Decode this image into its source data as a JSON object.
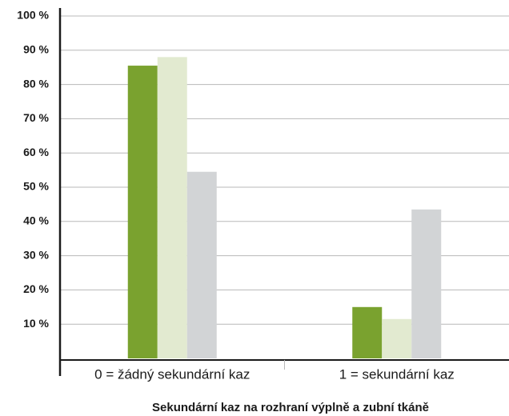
{
  "chart_data": {
    "type": "bar",
    "categories": [
      "0 = žádný sekundární kaz",
      "1 = sekundární kaz"
    ],
    "series": [
      {
        "color": "#7aa22f",
        "values": [
          85.5,
          15
        ]
      },
      {
        "color": "#e2ead0",
        "values": [
          88,
          11.5
        ]
      },
      {
        "color": "#d2d4d6",
        "values": [
          54.5,
          43.5
        ]
      }
    ],
    "x_label": "Sekundární kaz na rozhraní výplně a zubní tkáně",
    "ylim": [
      0,
      100
    ],
    "yticks": [
      {
        "value": 10,
        "label": "10 %"
      },
      {
        "value": 20,
        "label": "20 %"
      },
      {
        "value": 30,
        "label": "30 %"
      },
      {
        "value": 40,
        "label": "40 %"
      },
      {
        "value": 50,
        "label": "50 %"
      },
      {
        "value": 60,
        "label": "60 %"
      },
      {
        "value": 70,
        "label": "70 %"
      },
      {
        "value": 80,
        "label": "80 %"
      },
      {
        "value": 90,
        "label": "90 %"
      },
      {
        "value": 100,
        "label": "100 %"
      }
    ],
    "grid": true
  }
}
